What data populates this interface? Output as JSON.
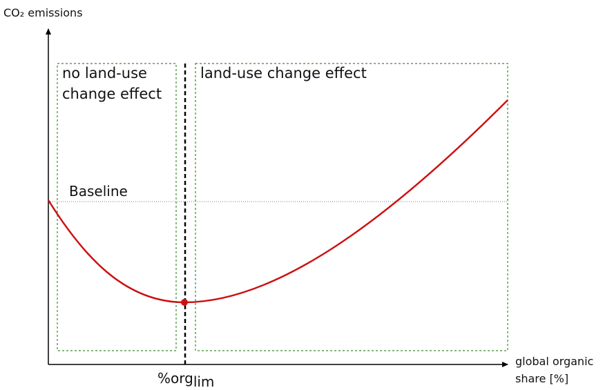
{
  "y_axis_label": "CO₂ emissions",
  "x_axis_label": [
    "global organic",
    "share [%]"
  ],
  "regions": [
    {
      "label": [
        "no land-use",
        "change effect"
      ]
    },
    {
      "label": [
        "land-use change effect"
      ]
    }
  ],
  "baseline_label": "Baseline",
  "threshold_label": {
    "main": "%org",
    "sub": "lim"
  }
}
